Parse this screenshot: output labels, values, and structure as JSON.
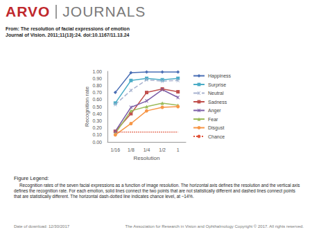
{
  "header": {
    "logo_left": "ARVO",
    "logo_right": "JOURNALS",
    "from": "From: The resolution of facial expressions of emotion",
    "citation": "Journal of Vision. 2011;11(13):24. doi:10.1167/11.13.24"
  },
  "chart_data": {
    "type": "line",
    "x_label": "Resolution",
    "y_label": "Recognition rate",
    "categories": [
      "1/16",
      "1/8",
      "1/4",
      "1/2",
      "1"
    ],
    "ylim": [
      0,
      1
    ],
    "yticks": [
      {
        "value": 0,
        "label": "0.00"
      },
      {
        "value": 0.1,
        "label": "0.10"
      },
      {
        "value": 0.2,
        "label": "0.20"
      },
      {
        "value": 0.3,
        "label": "0.30"
      },
      {
        "value": 0.4,
        "label": "0.40"
      },
      {
        "value": 0.5,
        "label": "0.50"
      },
      {
        "value": 0.6,
        "label": "0.60"
      },
      {
        "value": 0.7,
        "label": "0.70"
      },
      {
        "value": 0.8,
        "label": "0.80"
      },
      {
        "value": 0.9,
        "label": "0.90"
      },
      {
        "value": 1,
        "label": "1.00"
      }
    ],
    "grid": false,
    "legend": "right",
    "series": [
      {
        "name": "Happiness",
        "color": "#4a6fb5",
        "marker": "diamond",
        "line_style": "solid",
        "values": [
          0.7,
          0.98,
          0.99,
          0.99,
          0.99
        ]
      },
      {
        "name": "Surprise",
        "color": "#4bacc6",
        "marker": "square",
        "line_style": "solid",
        "values": [
          0.55,
          0.87,
          0.9,
          0.88,
          0.9
        ]
      },
      {
        "name": "Neutral",
        "color": "#a9b4d0",
        "marker": "x",
        "line_style": "dashed",
        "values": [
          0.53,
          0.73,
          0.88,
          0.86,
          0.87
        ]
      },
      {
        "name": "Sadness",
        "color": "#c0504d",
        "marker": "square",
        "line_style": "solid",
        "values": [
          0.15,
          0.4,
          0.7,
          0.75,
          0.71
        ]
      },
      {
        "name": "Anger",
        "color": "#7b5ea7",
        "marker": "x",
        "line_style": "solid",
        "values": [
          0.15,
          0.49,
          0.58,
          0.74,
          0.63
        ]
      },
      {
        "name": "Fear",
        "color": "#9bbb59",
        "marker": "triangle",
        "line_style": "solid",
        "values": [
          0.12,
          0.44,
          0.5,
          0.55,
          0.52
        ]
      },
      {
        "name": "Disgust",
        "color": "#f79646",
        "marker": "circle",
        "line_style": "solid",
        "values": [
          0.1,
          0.26,
          0.44,
          0.49,
          0.5
        ]
      },
      {
        "name": "Chance",
        "color": "#e0533a",
        "marker": "none",
        "line_style": "dotted",
        "values": [
          0.14,
          0.14,
          0.14,
          0.14,
          0.14
        ]
      }
    ]
  },
  "figure_legend": {
    "heading": "Figure Legend:",
    "text": "Recognition rates of the seven facial expressions as a function of image resolution. The horizontal axis defines the resolution and the vertical axis defines the recognition rate. For each emotion, solid lines connect the two points that are not statistically different and dashed lines connect points that are statistically different. The horizontal dash-dotted line indicates chance level, at ~14%."
  },
  "footer": {
    "date": "Date of download: 12/30/2017",
    "copyright": "The Association for Research in Vision and Ophthalmology Copyright © 2017. All rights reserved."
  }
}
